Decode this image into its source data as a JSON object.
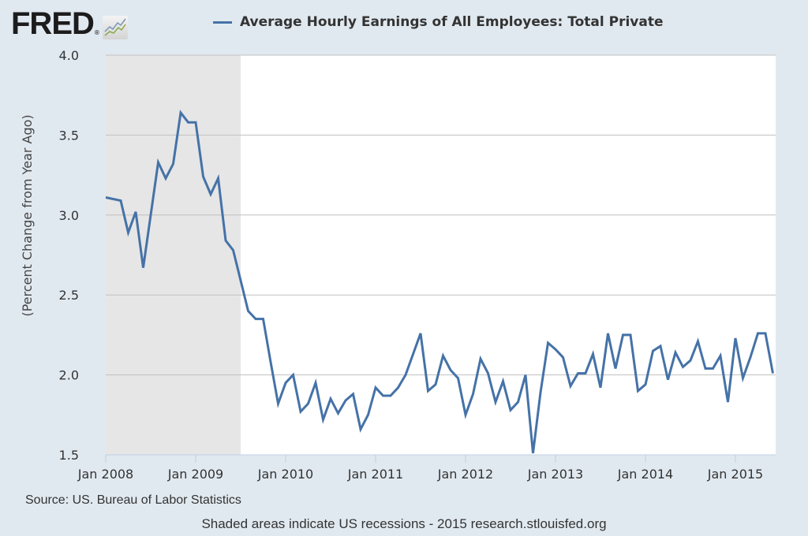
{
  "logo": {
    "text": "FRED",
    "reg": "®",
    "icon": "chart-line-icon"
  },
  "legend": {
    "label": "Average Hourly Earnings of All Employees: Total Private",
    "color": "#4572a7"
  },
  "footer": {
    "source": "Source: US. Bureau of Labor Statistics",
    "note": "Shaded areas indicate US recessions - 2015 research.stlouisfed.org"
  },
  "colors": {
    "background": "#e1e9f0",
    "plot_bg": "#ffffff",
    "recession": "#e6e6e6",
    "line": "#4572a7",
    "grid": "#c0c0c0"
  },
  "chart_data": {
    "type": "line",
    "title": "Average Hourly Earnings of All Employees: Total Private",
    "xlabel": "",
    "ylabel": "(Percent Change from Year Ago)",
    "ylim": [
      1.5,
      4.0
    ],
    "yticks": [
      "1.5",
      "2.0",
      "2.5",
      "3.0",
      "3.5",
      "4.0"
    ],
    "xticks": [
      "Jan 2008",
      "Jan 2009",
      "Jan 2010",
      "Jan 2011",
      "Jan 2012",
      "Jan 2013",
      "Jan 2014",
      "Jan 2015"
    ],
    "grid": true,
    "legend_position": "top",
    "x_start": "2008-01",
    "x_end": "2015-06",
    "frequency": "monthly",
    "recessions": [
      {
        "start": "2008-01",
        "end": "2009-06"
      }
    ],
    "series": [
      {
        "name": "Average Hourly Earnings of All Employees: Total Private",
        "values": [
          3.11,
          3.1,
          3.09,
          2.89,
          3.02,
          2.67,
          3.0,
          3.33,
          3.23,
          3.32,
          3.64,
          3.58,
          3.58,
          3.24,
          3.13,
          3.23,
          2.84,
          2.78,
          2.59,
          2.4,
          2.35,
          2.35,
          2.08,
          1.82,
          1.95,
          2.0,
          1.77,
          1.82,
          1.95,
          1.72,
          1.85,
          1.76,
          1.84,
          1.88,
          1.66,
          1.75,
          1.92,
          1.87,
          1.87,
          1.92,
          2.0,
          2.13,
          2.26,
          1.9,
          1.94,
          2.12,
          2.03,
          1.98,
          1.75,
          1.88,
          2.1,
          2.01,
          1.83,
          1.96,
          1.78,
          1.83,
          2.0,
          1.51,
          1.89,
          2.2,
          2.16,
          2.11,
          1.93,
          2.01,
          2.01,
          2.13,
          1.92,
          2.26,
          2.04,
          2.25,
          2.25,
          1.9,
          1.94,
          2.15,
          2.18,
          1.97,
          2.14,
          2.05,
          2.09,
          2.21,
          2.04,
          2.04,
          2.12,
          1.83,
          2.23,
          1.98,
          2.11,
          2.26,
          2.26,
          2.01
        ]
      }
    ]
  }
}
